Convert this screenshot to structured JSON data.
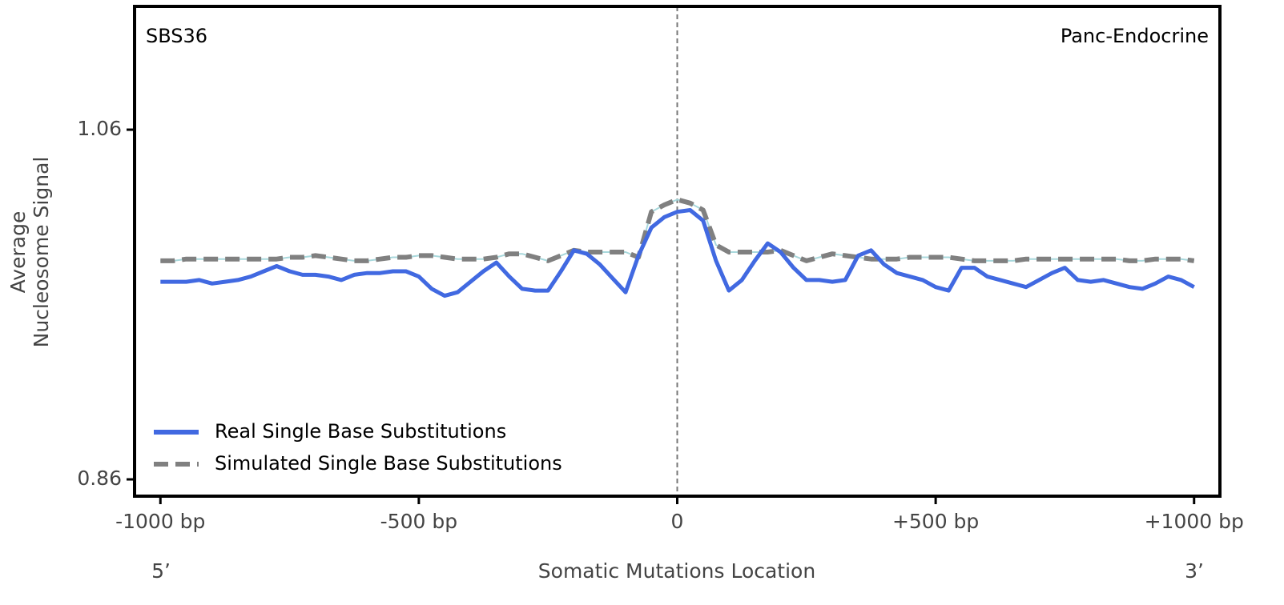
{
  "chart_data": {
    "type": "line",
    "annotations": [
      {
        "text": "SBS36",
        "loc": "upper left"
      },
      {
        "text": "Panc-Endocrine",
        "loc": "upper right"
      }
    ],
    "ylabel": [
      "Average",
      "Nucleosome Signal"
    ],
    "xlabel": "Somatic Mutations Location",
    "x_end_labels": [
      "5’",
      "3’"
    ],
    "x": [
      -1000,
      -975,
      -950,
      -925,
      -900,
      -875,
      -850,
      -825,
      -800,
      -775,
      -750,
      -725,
      -700,
      -675,
      -650,
      -625,
      -600,
      -575,
      -550,
      -525,
      -500,
      -475,
      -450,
      -425,
      -400,
      -375,
      -350,
      -325,
      -300,
      -275,
      -250,
      -225,
      -200,
      -175,
      -150,
      -125,
      -100,
      -75,
      -50,
      -25,
      0,
      25,
      50,
      75,
      100,
      125,
      150,
      175,
      200,
      225,
      250,
      275,
      300,
      325,
      350,
      375,
      400,
      425,
      450,
      475,
      500,
      525,
      550,
      575,
      600,
      625,
      650,
      675,
      700,
      725,
      750,
      775,
      800,
      825,
      850,
      875,
      900,
      925,
      950,
      975,
      1000
    ],
    "series": [
      {
        "name": "Real Single Base Substitutions",
        "color": "#4169e1",
        "linestyle": "solid",
        "values": [
          0.973,
          0.973,
          0.973,
          0.974,
          0.972,
          0.973,
          0.974,
          0.976,
          0.979,
          0.982,
          0.979,
          0.977,
          0.977,
          0.976,
          0.974,
          0.977,
          0.978,
          0.978,
          0.979,
          0.979,
          0.976,
          0.969,
          0.965,
          0.967,
          0.973,
          0.979,
          0.984,
          0.976,
          0.969,
          0.968,
          0.968,
          0.979,
          0.991,
          0.989,
          0.983,
          0.975,
          0.967,
          0.988,
          1.004,
          1.01,
          1.013,
          1.014,
          1.008,
          0.985,
          0.968,
          0.974,
          0.985,
          0.995,
          0.99,
          0.981,
          0.974,
          0.974,
          0.973,
          0.974,
          0.988,
          0.991,
          0.983,
          0.978,
          0.976,
          0.974,
          0.97,
          0.968,
          0.981,
          0.981,
          0.976,
          0.974,
          0.972,
          0.97,
          0.974,
          0.978,
          0.981,
          0.974,
          0.973,
          0.974,
          0.972,
          0.97,
          0.969,
          0.972,
          0.976,
          0.974,
          0.97
        ]
      },
      {
        "name": "Simulated Single Base Substitutions",
        "color": "#808080",
        "linestyle": "dashed",
        "values": [
          0.985,
          0.985,
          0.986,
          0.986,
          0.986,
          0.986,
          0.986,
          0.986,
          0.986,
          0.986,
          0.987,
          0.987,
          0.988,
          0.987,
          0.986,
          0.985,
          0.985,
          0.986,
          0.987,
          0.987,
          0.988,
          0.988,
          0.987,
          0.986,
          0.986,
          0.986,
          0.987,
          0.989,
          0.989,
          0.987,
          0.985,
          0.988,
          0.991,
          0.99,
          0.99,
          0.99,
          0.99,
          0.987,
          1.013,
          1.017,
          1.02,
          1.018,
          1.014,
          0.994,
          0.99,
          0.99,
          0.99,
          0.99,
          0.991,
          0.988,
          0.985,
          0.987,
          0.989,
          0.988,
          0.987,
          0.986,
          0.986,
          0.986,
          0.987,
          0.987,
          0.987,
          0.987,
          0.986,
          0.985,
          0.985,
          0.985,
          0.985,
          0.986,
          0.986,
          0.986,
          0.986,
          0.986,
          0.986,
          0.986,
          0.986,
          0.985,
          0.985,
          0.986,
          0.986,
          0.986,
          0.985
        ]
      }
    ],
    "xlim": [
      -1050,
      1050
    ],
    "ylim": [
      0.8504,
      1.1305
    ],
    "xticks": [
      {
        "value": -1000,
        "label": "-1000 bp"
      },
      {
        "value": -500,
        "label": "-500 bp"
      },
      0,
      {
        "value": 500,
        "label": "+500 bp"
      },
      {
        "value": 1000,
        "label": "+1000 bp"
      }
    ],
    "yticks": [
      0.86,
      1.06
    ],
    "vline": 0,
    "legend": "lower left",
    "grid": false
  }
}
